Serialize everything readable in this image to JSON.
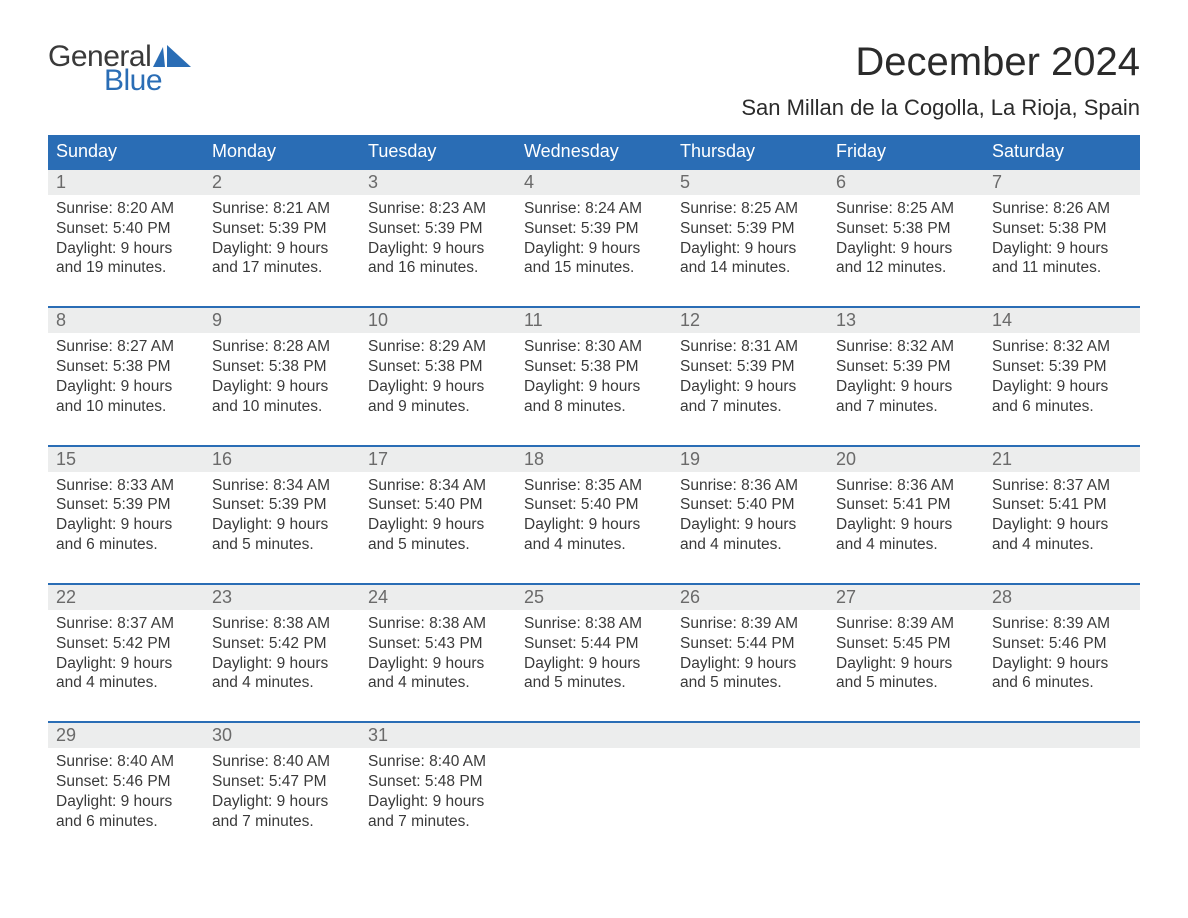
{
  "logo": {
    "word1": "General",
    "word2": "Blue",
    "word1_color": "#3a3a3a",
    "word2_color": "#2a6db5",
    "sail_color": "#2a6db5"
  },
  "header": {
    "title": "December 2024",
    "location": "San Millan de la Cogolla, La Rioja, Spain",
    "title_fontsize": 40,
    "location_fontsize": 22
  },
  "colors": {
    "header_bg": "#2a6db5",
    "header_text": "#ffffff",
    "daynum_bg": "#eceded",
    "daynum_text": "#6a6a6a",
    "body_text": "#3a3a3a",
    "week_divider": "#2a6db5",
    "page_bg": "#ffffff"
  },
  "day_names": [
    "Sunday",
    "Monday",
    "Tuesday",
    "Wednesday",
    "Thursday",
    "Friday",
    "Saturday"
  ],
  "weeks": [
    [
      {
        "n": "1",
        "sunrise": "Sunrise: 8:20 AM",
        "sunset": "Sunset: 5:40 PM",
        "d1": "Daylight: 9 hours",
        "d2": "and 19 minutes."
      },
      {
        "n": "2",
        "sunrise": "Sunrise: 8:21 AM",
        "sunset": "Sunset: 5:39 PM",
        "d1": "Daylight: 9 hours",
        "d2": "and 17 minutes."
      },
      {
        "n": "3",
        "sunrise": "Sunrise: 8:23 AM",
        "sunset": "Sunset: 5:39 PM",
        "d1": "Daylight: 9 hours",
        "d2": "and 16 minutes."
      },
      {
        "n": "4",
        "sunrise": "Sunrise: 8:24 AM",
        "sunset": "Sunset: 5:39 PM",
        "d1": "Daylight: 9 hours",
        "d2": "and 15 minutes."
      },
      {
        "n": "5",
        "sunrise": "Sunrise: 8:25 AM",
        "sunset": "Sunset: 5:39 PM",
        "d1": "Daylight: 9 hours",
        "d2": "and 14 minutes."
      },
      {
        "n": "6",
        "sunrise": "Sunrise: 8:25 AM",
        "sunset": "Sunset: 5:38 PM",
        "d1": "Daylight: 9 hours",
        "d2": "and 12 minutes."
      },
      {
        "n": "7",
        "sunrise": "Sunrise: 8:26 AM",
        "sunset": "Sunset: 5:38 PM",
        "d1": "Daylight: 9 hours",
        "d2": "and 11 minutes."
      }
    ],
    [
      {
        "n": "8",
        "sunrise": "Sunrise: 8:27 AM",
        "sunset": "Sunset: 5:38 PM",
        "d1": "Daylight: 9 hours",
        "d2": "and 10 minutes."
      },
      {
        "n": "9",
        "sunrise": "Sunrise: 8:28 AM",
        "sunset": "Sunset: 5:38 PM",
        "d1": "Daylight: 9 hours",
        "d2": "and 10 minutes."
      },
      {
        "n": "10",
        "sunrise": "Sunrise: 8:29 AM",
        "sunset": "Sunset: 5:38 PM",
        "d1": "Daylight: 9 hours",
        "d2": "and 9 minutes."
      },
      {
        "n": "11",
        "sunrise": "Sunrise: 8:30 AM",
        "sunset": "Sunset: 5:38 PM",
        "d1": "Daylight: 9 hours",
        "d2": "and 8 minutes."
      },
      {
        "n": "12",
        "sunrise": "Sunrise: 8:31 AM",
        "sunset": "Sunset: 5:39 PM",
        "d1": "Daylight: 9 hours",
        "d2": "and 7 minutes."
      },
      {
        "n": "13",
        "sunrise": "Sunrise: 8:32 AM",
        "sunset": "Sunset: 5:39 PM",
        "d1": "Daylight: 9 hours",
        "d2": "and 7 minutes."
      },
      {
        "n": "14",
        "sunrise": "Sunrise: 8:32 AM",
        "sunset": "Sunset: 5:39 PM",
        "d1": "Daylight: 9 hours",
        "d2": "and 6 minutes."
      }
    ],
    [
      {
        "n": "15",
        "sunrise": "Sunrise: 8:33 AM",
        "sunset": "Sunset: 5:39 PM",
        "d1": "Daylight: 9 hours",
        "d2": "and 6 minutes."
      },
      {
        "n": "16",
        "sunrise": "Sunrise: 8:34 AM",
        "sunset": "Sunset: 5:39 PM",
        "d1": "Daylight: 9 hours",
        "d2": "and 5 minutes."
      },
      {
        "n": "17",
        "sunrise": "Sunrise: 8:34 AM",
        "sunset": "Sunset: 5:40 PM",
        "d1": "Daylight: 9 hours",
        "d2": "and 5 minutes."
      },
      {
        "n": "18",
        "sunrise": "Sunrise: 8:35 AM",
        "sunset": "Sunset: 5:40 PM",
        "d1": "Daylight: 9 hours",
        "d2": "and 4 minutes."
      },
      {
        "n": "19",
        "sunrise": "Sunrise: 8:36 AM",
        "sunset": "Sunset: 5:40 PM",
        "d1": "Daylight: 9 hours",
        "d2": "and 4 minutes."
      },
      {
        "n": "20",
        "sunrise": "Sunrise: 8:36 AM",
        "sunset": "Sunset: 5:41 PM",
        "d1": "Daylight: 9 hours",
        "d2": "and 4 minutes."
      },
      {
        "n": "21",
        "sunrise": "Sunrise: 8:37 AM",
        "sunset": "Sunset: 5:41 PM",
        "d1": "Daylight: 9 hours",
        "d2": "and 4 minutes."
      }
    ],
    [
      {
        "n": "22",
        "sunrise": "Sunrise: 8:37 AM",
        "sunset": "Sunset: 5:42 PM",
        "d1": "Daylight: 9 hours",
        "d2": "and 4 minutes."
      },
      {
        "n": "23",
        "sunrise": "Sunrise: 8:38 AM",
        "sunset": "Sunset: 5:42 PM",
        "d1": "Daylight: 9 hours",
        "d2": "and 4 minutes."
      },
      {
        "n": "24",
        "sunrise": "Sunrise: 8:38 AM",
        "sunset": "Sunset: 5:43 PM",
        "d1": "Daylight: 9 hours",
        "d2": "and 4 minutes."
      },
      {
        "n": "25",
        "sunrise": "Sunrise: 8:38 AM",
        "sunset": "Sunset: 5:44 PM",
        "d1": "Daylight: 9 hours",
        "d2": "and 5 minutes."
      },
      {
        "n": "26",
        "sunrise": "Sunrise: 8:39 AM",
        "sunset": "Sunset: 5:44 PM",
        "d1": "Daylight: 9 hours",
        "d2": "and 5 minutes."
      },
      {
        "n": "27",
        "sunrise": "Sunrise: 8:39 AM",
        "sunset": "Sunset: 5:45 PM",
        "d1": "Daylight: 9 hours",
        "d2": "and 5 minutes."
      },
      {
        "n": "28",
        "sunrise": "Sunrise: 8:39 AM",
        "sunset": "Sunset: 5:46 PM",
        "d1": "Daylight: 9 hours",
        "d2": "and 6 minutes."
      }
    ],
    [
      {
        "n": "29",
        "sunrise": "Sunrise: 8:40 AM",
        "sunset": "Sunset: 5:46 PM",
        "d1": "Daylight: 9 hours",
        "d2": "and 6 minutes."
      },
      {
        "n": "30",
        "sunrise": "Sunrise: 8:40 AM",
        "sunset": "Sunset: 5:47 PM",
        "d1": "Daylight: 9 hours",
        "d2": "and 7 minutes."
      },
      {
        "n": "31",
        "sunrise": "Sunrise: 8:40 AM",
        "sunset": "Sunset: 5:48 PM",
        "d1": "Daylight: 9 hours",
        "d2": "and 7 minutes."
      },
      null,
      null,
      null,
      null
    ]
  ]
}
